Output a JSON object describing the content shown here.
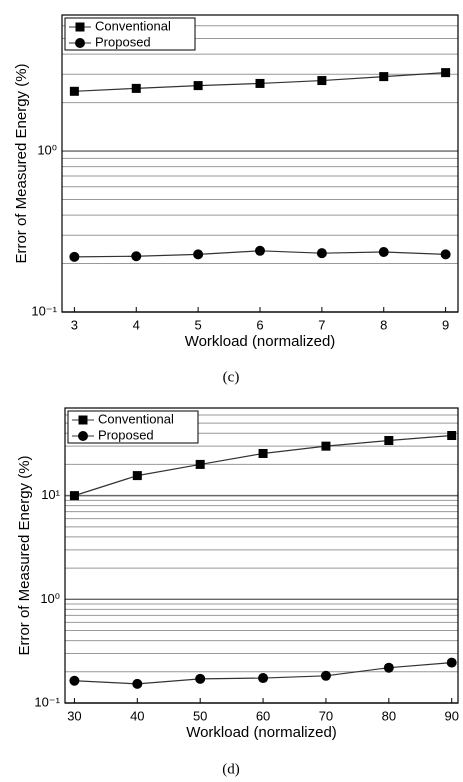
{
  "chart_data": [
    {
      "type": "line",
      "caption": "(c)",
      "xlabel": "Workload (normalized)",
      "ylabel": "Error of Measured Energy (%)",
      "x": [
        3,
        4,
        5,
        6,
        7,
        8,
        9
      ],
      "xlim": [
        2.8,
        9.2
      ],
      "xticks": [
        3,
        4,
        5,
        6,
        7,
        8,
        9
      ],
      "log_y": true,
      "ylim": [
        0.1,
        7
      ],
      "grid": true,
      "legend": "upper left",
      "yticks": [
        {
          "value": 0.1,
          "label": "10⁻¹"
        },
        {
          "value": 1,
          "label": "10⁰"
        }
      ],
      "minor_yticks": [
        0.2,
        0.3,
        0.4,
        0.5,
        0.6,
        0.7,
        0.8,
        0.9,
        2,
        3,
        4,
        5,
        6
      ],
      "series": [
        {
          "name": "Conventional",
          "color": "#000000",
          "marker": "square",
          "values": [
            2.35,
            2.45,
            2.55,
            2.63,
            2.74,
            2.9,
            3.07
          ]
        },
        {
          "name": "Proposed",
          "color": "#000000",
          "marker": "circle",
          "values": [
            0.22,
            0.222,
            0.228,
            0.24,
            0.232,
            0.236,
            0.228
          ]
        }
      ]
    },
    {
      "type": "line",
      "caption": "(d)",
      "xlabel": "Workload (normalized)",
      "ylabel": "Error of Measured Energy (%)",
      "x": [
        30,
        40,
        50,
        60,
        70,
        80,
        90
      ],
      "xlim": [
        28.5,
        91
      ],
      "xticks": [
        30,
        40,
        50,
        60,
        70,
        80,
        90
      ],
      "log_y": true,
      "ylim": [
        0.1,
        70
      ],
      "grid": true,
      "legend": "upper left",
      "yticks": [
        {
          "value": 0.1,
          "label": "10⁻¹"
        },
        {
          "value": 1,
          "label": "10⁰"
        },
        {
          "value": 10,
          "label": "10¹"
        }
      ],
      "minor_yticks": [
        0.2,
        0.3,
        0.4,
        0.5,
        0.6,
        0.7,
        0.8,
        0.9,
        2,
        3,
        4,
        5,
        6,
        7,
        8,
        9,
        20,
        30,
        40,
        50,
        60
      ],
      "series": [
        {
          "name": "Conventional",
          "color": "#000000",
          "marker": "square",
          "values": [
            10,
            15.6,
            20,
            25.5,
            30,
            34,
            38
          ]
        },
        {
          "name": "Proposed",
          "color": "#000000",
          "marker": "circle",
          "values": [
            0.164,
            0.153,
            0.171,
            0.174,
            0.183,
            0.219,
            0.245
          ]
        }
      ]
    }
  ]
}
